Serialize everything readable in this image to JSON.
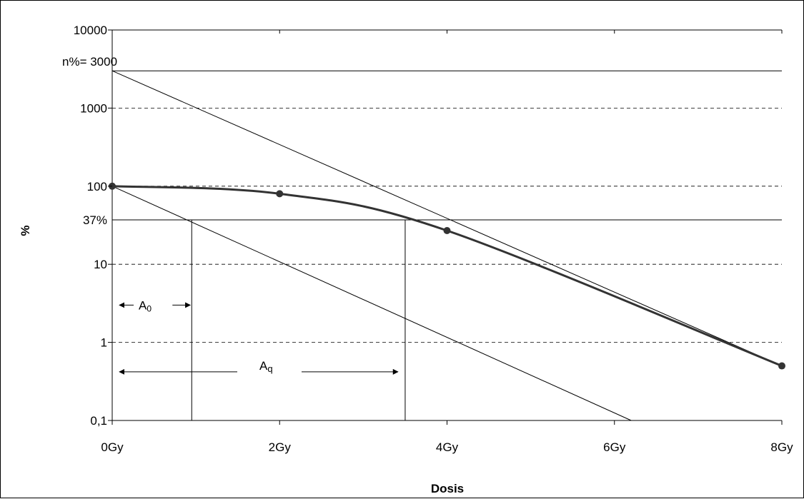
{
  "chart_data": {
    "type": "line",
    "xlabel": "Dosis",
    "ylabel": "%",
    "x_ticks": [
      {
        "value": 0,
        "label": "0Gy"
      },
      {
        "value": 2,
        "label": "2Gy"
      },
      {
        "value": 4,
        "label": "4Gy"
      },
      {
        "value": 6,
        "label": "6Gy"
      },
      {
        "value": 8,
        "label": "8Gy"
      }
    ],
    "y_ticks": [
      {
        "value": 0.1,
        "label": "0,1"
      },
      {
        "value": 1,
        "label": "1"
      },
      {
        "value": 10,
        "label": "10"
      },
      {
        "value": 100,
        "label": "100"
      },
      {
        "value": 1000,
        "label": "1000"
      },
      {
        "value": 10000,
        "label": "10000"
      }
    ],
    "xlim": [
      0,
      8
    ],
    "ylim": [
      0.1,
      10000
    ],
    "y_scale": "log",
    "grid": "horizontal dashed",
    "series": [
      {
        "x": [
          0,
          2,
          4,
          8
        ],
        "y": [
          100,
          80,
          27,
          0.5
        ]
      }
    ],
    "reference_lines": {
      "n_line": {
        "value": 3000,
        "label": "n%= 3000"
      },
      "p37_line": {
        "value": 37,
        "label": "37%"
      },
      "extrapolated_line": {
        "x": [
          0,
          8
        ],
        "y": [
          3000,
          0.5
        ]
      },
      "initial_slope_line": {
        "x": [
          0,
          6.2
        ],
        "y": [
          100,
          0.1
        ]
      },
      "A0_dose": 0.95,
      "Aq_dose": 3.5
    },
    "annotations": {
      "A0_label": "A",
      "A0_subscript": "0",
      "Aq_label": "A",
      "Aq_subscript": "q"
    }
  }
}
